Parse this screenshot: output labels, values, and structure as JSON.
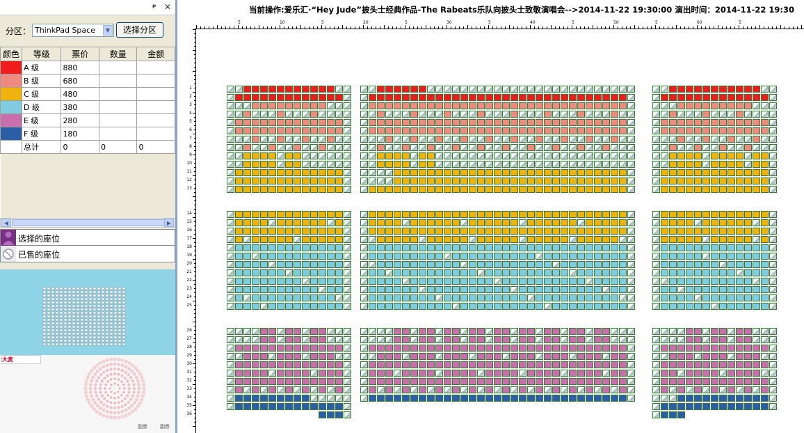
{
  "panel": {
    "pin_label": "ᵖ",
    "close_label": "✕"
  },
  "zone": {
    "label": "分区：",
    "selected": "ThinkPad Space",
    "button": "选择分区"
  },
  "table": {
    "headers": [
      "颜色",
      "等级",
      "票价",
      "数量",
      "金额"
    ],
    "rows": [
      {
        "color": "#ee1c1c",
        "grade": "A 级",
        "price": "880",
        "qty": "",
        "amount": ""
      },
      {
        "color": "#ef8a80",
        "grade": "B 级",
        "price": "680",
        "qty": "",
        "amount": ""
      },
      {
        "color": "#f0b20c",
        "grade": "C 级",
        "price": "480",
        "qty": "",
        "amount": ""
      },
      {
        "color": "#7fcbe0",
        "grade": "D 级",
        "price": "380",
        "qty": "",
        "amount": ""
      },
      {
        "color": "#c970ac",
        "grade": "E 级",
        "price": "280",
        "qty": "",
        "amount": ""
      },
      {
        "color": "#2a5fa8",
        "grade": "F 级",
        "price": "180",
        "qty": "",
        "amount": ""
      }
    ],
    "total": {
      "grade": "总计",
      "price": "0",
      "qty": "0",
      "amount": "0"
    }
  },
  "legend": {
    "selected_label": "选择的座位",
    "selected_icon": "person-icon",
    "sold_label": "已售的座位",
    "sold_icon": "sold-seat-icon"
  },
  "info_bar": "当前操作:爱乐汇·“Hey Jude”披头士经典作品-The Rabeats乐队向披头士致敬演唱会-->2014-11-22 19:30:00  演出时间：2014-11-22 19:30",
  "ruler_numbers": [
    "5",
    "10",
    "5",
    "20",
    "5",
    "30",
    "5",
    "40",
    "5",
    "50",
    "5",
    "60",
    "5"
  ],
  "row_labels": [
    "1",
    "2",
    "3",
    "4",
    "5",
    "6",
    "7",
    "8",
    "9",
    "10",
    "11",
    "12",
    "13",
    "14",
    "15",
    "16",
    "17",
    "18",
    "19",
    "20",
    "21",
    "22",
    "23",
    "24",
    "25",
    "26",
    "27",
    "28",
    "29",
    "30",
    "31",
    "32",
    "33",
    "34",
    "35",
    "36"
  ],
  "ad": {
    "brand": "大麦",
    "footer_1": "副券",
    "footer_2": "副券"
  },
  "colors": {
    "A": "#ee1c1c",
    "B": "#ef8a80",
    "C": "#f0b20c",
    "D": "#7fcbe0",
    "E": "#c970ac",
    "F": "#2a5fa8",
    "sold": "#cfe0dc"
  }
}
